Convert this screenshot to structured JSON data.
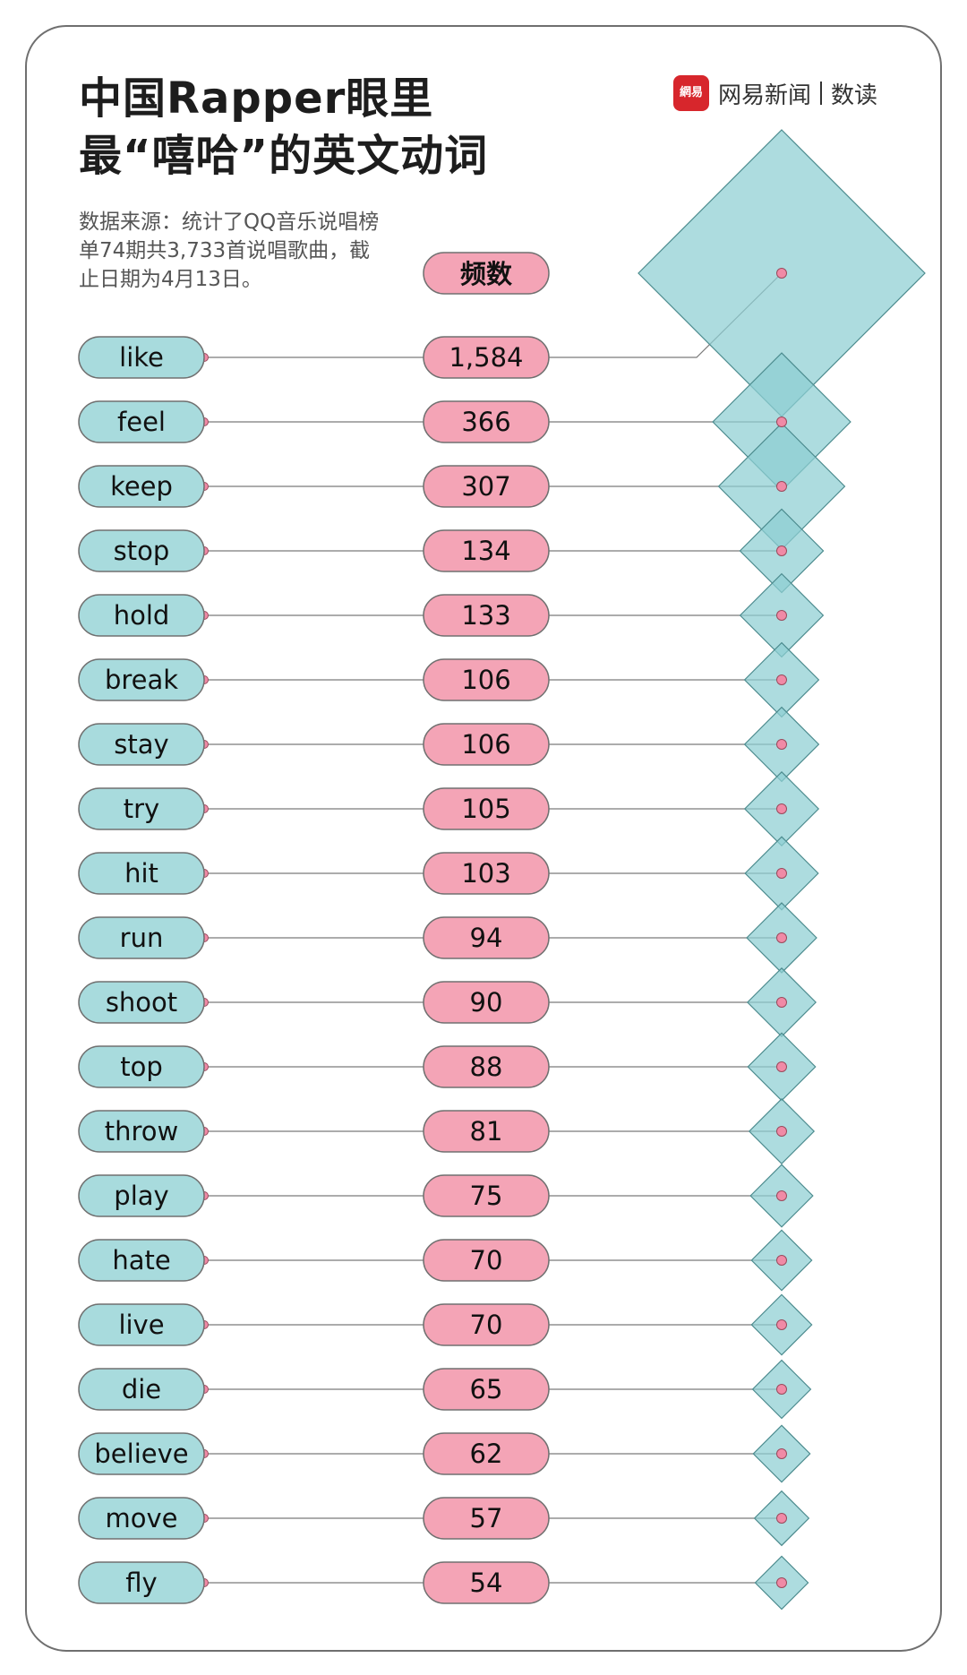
{
  "header": {
    "title_line1": "中国Rapper眼里",
    "title_line2": "最“嘻哈”的英文动词",
    "source": "数据来源：统计了QQ音乐说唱榜单74期共3,733首说唱歌曲，截止日期为4月13日。"
  },
  "brand": {
    "logo_text": "網易",
    "name": "网易新闻",
    "sub": "数读"
  },
  "colors": {
    "verb_pill": "#a8dbdd",
    "count_pill": "#f4a4b6",
    "diamond": "#8dcfd2",
    "brand_red": "#d7262c"
  },
  "chart_data": {
    "type": "bar",
    "column_header": "频数",
    "categories": [
      "like",
      "feel",
      "keep",
      "stop",
      "hold",
      "break",
      "stay",
      "try",
      "hit",
      "run",
      "shoot",
      "top",
      "throw",
      "play",
      "hate",
      "live",
      "die",
      "believe",
      "move",
      "fly"
    ],
    "values": [
      1584,
      366,
      307,
      134,
      133,
      106,
      106,
      105,
      103,
      94,
      90,
      88,
      81,
      75,
      70,
      70,
      65,
      62,
      57,
      54
    ],
    "value_labels": [
      "1,584",
      "366",
      "307",
      "134",
      "133",
      "106",
      "106",
      "105",
      "103",
      "94",
      "90",
      "88",
      "81",
      "75",
      "70",
      "70",
      "65",
      "62",
      "57",
      "54"
    ]
  }
}
